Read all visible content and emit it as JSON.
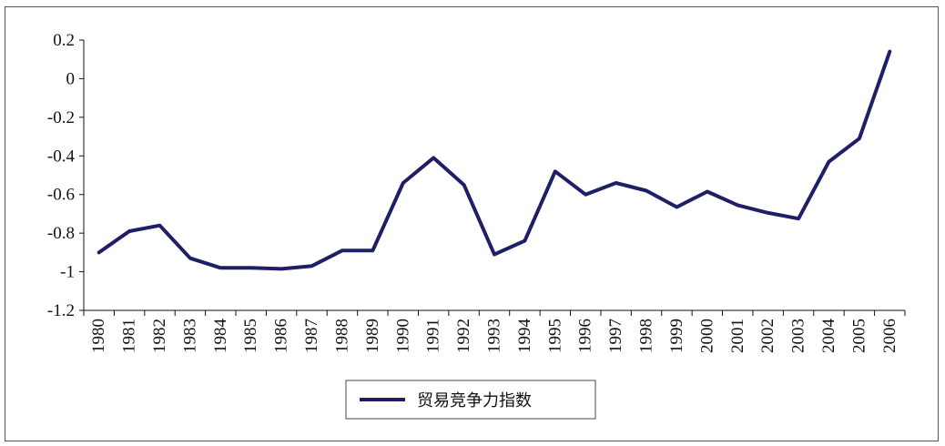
{
  "chart_data": {
    "type": "line",
    "title": "",
    "xlabel": "",
    "ylabel": "",
    "ylim": [
      -1.2,
      0.2
    ],
    "yticks": [
      "0.2",
      "0",
      "-0.2",
      "-0.4",
      "-0.6",
      "-0.8",
      "-1",
      "-1.2"
    ],
    "grid": false,
    "legend_position": "bottom-center",
    "categories": [
      "1980",
      "1981",
      "1982",
      "1983",
      "1984",
      "1985",
      "1986",
      "1987",
      "1988",
      "1989",
      "1990",
      "1991",
      "1992",
      "1993",
      "1994",
      "1995",
      "1996",
      "1997",
      "1998",
      "1999",
      "2000",
      "2001",
      "2002",
      "2003",
      "2004",
      "2005",
      "2006"
    ],
    "series": [
      {
        "name": "贸易竞争力指数",
        "color": "#1f1f66",
        "values": [
          -0.9,
          -0.79,
          -0.76,
          -0.93,
          -0.98,
          -0.98,
          -0.985,
          -0.97,
          -0.89,
          -0.89,
          -0.54,
          -0.41,
          -0.55,
          -0.91,
          -0.84,
          -0.48,
          -0.6,
          -0.54,
          -0.58,
          -0.665,
          -0.585,
          -0.655,
          -0.695,
          -0.725,
          -0.43,
          -0.31,
          0.14
        ]
      }
    ]
  }
}
